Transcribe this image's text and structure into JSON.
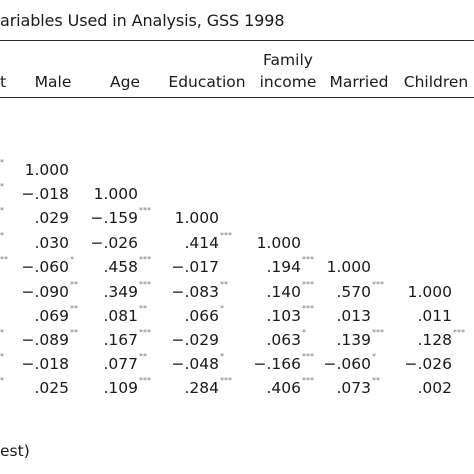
{
  "table": {
    "title": "ariables Used in Analysis, GSS 1998",
    "header_cut": "t",
    "columns": [
      {
        "id": "male",
        "label": "Male"
      },
      {
        "id": "age",
        "label": "Age"
      },
      {
        "id": "education",
        "label": "Education"
      },
      {
        "id": "family_income",
        "label_line1": "Family",
        "label_line2": "income"
      },
      {
        "id": "married",
        "label": "Married"
      },
      {
        "id": "children",
        "label": "Children"
      }
    ],
    "rows": [
      {
        "cells": [
          {
            "v": "1.000",
            "s": ""
          }
        ]
      },
      {
        "cells": [
          {
            "v": "−.018",
            "s": ""
          },
          {
            "v": "1.000",
            "s": ""
          }
        ]
      },
      {
        "cells": [
          {
            "v": ".029",
            "s": ""
          },
          {
            "v": "−.159",
            "s": "***"
          },
          {
            "v": "1.000",
            "s": ""
          }
        ]
      },
      {
        "cells": [
          {
            "v": ".030",
            "s": ""
          },
          {
            "v": "−.026",
            "s": ""
          },
          {
            "v": ".414",
            "s": "***"
          },
          {
            "v": "1.000",
            "s": ""
          }
        ]
      },
      {
        "cells": [
          {
            "v": "−.060",
            "s": "*"
          },
          {
            "v": ".458",
            "s": "***"
          },
          {
            "v": "−.017",
            "s": ""
          },
          {
            "v": ".194",
            "s": "***"
          },
          {
            "v": "1.000",
            "s": ""
          }
        ]
      },
      {
        "cells": [
          {
            "v": "−.090",
            "s": "**"
          },
          {
            "v": ".349",
            "s": "***"
          },
          {
            "v": "−.083",
            "s": "**"
          },
          {
            "v": ".140",
            "s": "***"
          },
          {
            "v": ".570",
            "s": "***"
          },
          {
            "v": "1.000",
            "s": ""
          }
        ]
      },
      {
        "cells": [
          {
            "v": ".069",
            "s": "**"
          },
          {
            "v": ".081",
            "s": "**"
          },
          {
            "v": ".066",
            "s": "*"
          },
          {
            "v": ".103",
            "s": "***"
          },
          {
            "v": ".013",
            "s": ""
          },
          {
            "v": ".011",
            "s": ""
          }
        ]
      },
      {
        "cells": [
          {
            "v": "−.089",
            "s": "**"
          },
          {
            "v": ".167",
            "s": "***"
          },
          {
            "v": "−.029",
            "s": ""
          },
          {
            "v": ".063",
            "s": "*"
          },
          {
            "v": ".139",
            "s": "***"
          },
          {
            "v": ".128",
            "s": "***"
          }
        ]
      },
      {
        "cells": [
          {
            "v": "−.018",
            "s": ""
          },
          {
            "v": ".077",
            "s": "**"
          },
          {
            "v": "−.048",
            "s": "*"
          },
          {
            "v": "−.166",
            "s": "***"
          },
          {
            "v": "−.060",
            "s": "*"
          },
          {
            "v": "−.026",
            "s": ""
          }
        ]
      },
      {
        "cells": [
          {
            "v": ".025",
            "s": ""
          },
          {
            "v": ".109",
            "s": "***"
          },
          {
            "v": ".284",
            "s": "***"
          },
          {
            "v": ".406",
            "s": "***"
          },
          {
            "v": ".073",
            "s": "**"
          },
          {
            "v": ".002",
            "s": ""
          }
        ]
      }
    ],
    "left_edge_marks": [
      "*",
      "*",
      "*",
      "*",
      "**",
      "",
      "",
      "*",
      "*",
      "*"
    ],
    "footnote": "est)"
  }
}
